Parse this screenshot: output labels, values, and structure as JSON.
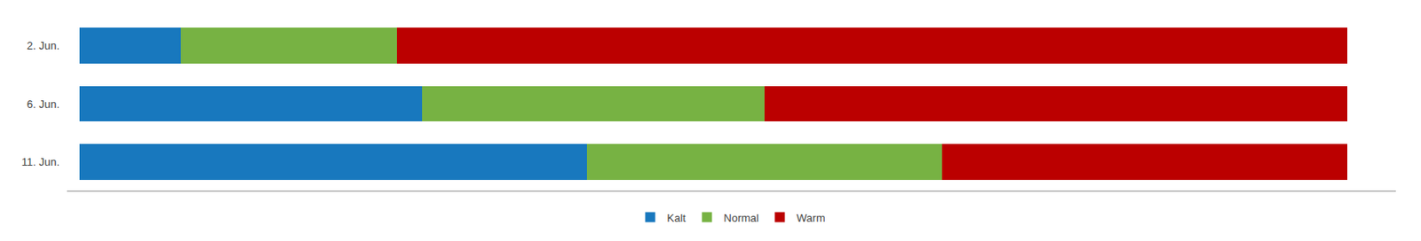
{
  "chart_data": {
    "type": "bar",
    "orientation": "horizontal",
    "stacked": true,
    "categories": [
      "2. Jun.",
      "6. Jun.",
      "11. Jun."
    ],
    "series": [
      {
        "name": "Kalt",
        "color": "#1878be",
        "values": [
          8,
          27,
          40
        ]
      },
      {
        "name": "Normal",
        "color": "#77b243",
        "values": [
          17,
          27,
          28
        ]
      },
      {
        "name": "Warm",
        "color": "#bb0000",
        "values": [
          75,
          46,
          32
        ]
      }
    ],
    "xlim": [
      -1,
      103.8
    ],
    "xticks": [],
    "tick_labels": "y",
    "grid": false,
    "legend": "bottom"
  }
}
